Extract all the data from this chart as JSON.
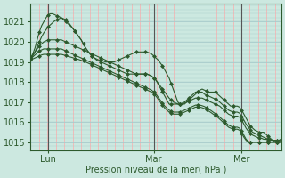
{
  "xlabel": "Pression niveau de la mer( hPa )",
  "bg_color": "#cce8e0",
  "plot_bg_color": "#cce8e0",
  "grid_h_color": "#aacccc",
  "grid_v_color": "#ffaaaa",
  "line_color": "#2d5a2d",
  "tick_color": "#2d5a2d",
  "vline_color": "#555555",
  "ylim": [
    1014.6,
    1021.9
  ],
  "yticks": [
    1015,
    1016,
    1017,
    1018,
    1019,
    1020,
    1021
  ],
  "xlim_max": 114,
  "day_positions": [
    8,
    56,
    96
  ],
  "day_labels": [
    "Lun",
    "Mar",
    "Mer"
  ],
  "total_points": 115,
  "series": [
    [
      1019.2,
      1019.4,
      1019.7,
      1020.1,
      1020.5,
      1020.8,
      1021.0,
      1021.2,
      1021.35,
      1021.4,
      1021.4,
      1021.35,
      1021.3,
      1021.25,
      1021.2,
      1021.1,
      1021.0,
      1020.9,
      1020.8,
      1020.7,
      1020.55,
      1020.4,
      1020.25,
      1020.1,
      1019.9,
      1019.7,
      1019.55,
      1019.4,
      1019.3,
      1019.2,
      1019.15,
      1019.1,
      1019.1,
      1019.05,
      1019.0,
      1019.0,
      1019.0,
      1019.0,
      1019.0,
      1019.05,
      1019.1,
      1019.15,
      1019.2,
      1019.25,
      1019.3,
      1019.35,
      1019.4,
      1019.45,
      1019.5,
      1019.5,
      1019.5,
      1019.5,
      1019.5,
      1019.5,
      1019.45,
      1019.4,
      1019.3,
      1019.2,
      1019.1,
      1018.95,
      1018.8,
      1018.6,
      1018.4,
      1018.2,
      1017.9,
      1017.6,
      1017.3,
      1017.0,
      1016.9,
      1016.9,
      1016.9,
      1017.0,
      1017.1,
      1017.2,
      1017.3,
      1017.4,
      1017.5,
      1017.6,
      1017.65,
      1017.6,
      1017.55,
      1017.5,
      1017.5,
      1017.5,
      1017.5,
      1017.4,
      1017.3,
      1017.2,
      1017.1,
      1017.0,
      1016.9,
      1016.8,
      1016.8,
      1016.8,
      1016.8,
      1016.75,
      1016.6,
      1016.4,
      1016.2,
      1016.0,
      1015.8,
      1015.7,
      1015.6,
      1015.55,
      1015.5,
      1015.5,
      1015.5,
      1015.4,
      1015.3,
      1015.2,
      1015.1,
      1015.05,
      1015.0,
      1015.0,
      1015.1
    ],
    [
      1019.15,
      1019.3,
      1019.5,
      1019.75,
      1020.0,
      1020.25,
      1020.45,
      1020.6,
      1020.75,
      1020.85,
      1020.95,
      1021.05,
      1021.1,
      1021.15,
      1021.2,
      1021.15,
      1021.1,
      1021.0,
      1020.85,
      1020.7,
      1020.55,
      1020.4,
      1020.25,
      1020.1,
      1019.9,
      1019.7,
      1019.55,
      1019.4,
      1019.3,
      1019.2,
      1019.1,
      1019.05,
      1019.0,
      1018.95,
      1018.9,
      1018.85,
      1018.8,
      1018.75,
      1018.7,
      1018.65,
      1018.6,
      1018.55,
      1018.5,
      1018.45,
      1018.4,
      1018.4,
      1018.4,
      1018.4,
      1018.4,
      1018.4,
      1018.4,
      1018.4,
      1018.4,
      1018.4,
      1018.35,
      1018.3,
      1018.2,
      1018.1,
      1017.9,
      1017.7,
      1017.5,
      1017.3,
      1017.1,
      1016.9,
      1016.9,
      1016.9,
      1016.9,
      1016.9,
      1016.9,
      1016.95,
      1017.0,
      1017.1,
      1017.2,
      1017.3,
      1017.4,
      1017.5,
      1017.5,
      1017.5,
      1017.5,
      1017.4,
      1017.35,
      1017.3,
      1017.25,
      1017.2,
      1017.15,
      1017.1,
      1017.0,
      1016.9,
      1016.8,
      1016.7,
      1016.6,
      1016.55,
      1016.5,
      1016.5,
      1016.5,
      1016.45,
      1016.3,
      1016.1,
      1015.9,
      1015.75,
      1015.6,
      1015.5,
      1015.45,
      1015.4,
      1015.35,
      1015.3,
      1015.25,
      1015.2,
      1015.15,
      1015.15,
      1015.1,
      1015.1,
      1015.1,
      1015.1,
      1015.15
    ],
    [
      1019.2,
      1019.35,
      1019.5,
      1019.65,
      1019.8,
      1019.9,
      1020.0,
      1020.05,
      1020.1,
      1020.1,
      1020.1,
      1020.1,
      1020.1,
      1020.1,
      1020.1,
      1020.05,
      1020.0,
      1019.95,
      1019.9,
      1019.85,
      1019.8,
      1019.75,
      1019.7,
      1019.65,
      1019.6,
      1019.55,
      1019.5,
      1019.45,
      1019.4,
      1019.35,
      1019.3,
      1019.25,
      1019.2,
      1019.15,
      1019.1,
      1019.05,
      1019.0,
      1018.95,
      1018.9,
      1018.85,
      1018.8,
      1018.75,
      1018.7,
      1018.65,
      1018.6,
      1018.55,
      1018.5,
      1018.45,
      1018.4,
      1018.4,
      1018.4,
      1018.4,
      1018.4,
      1018.4,
      1018.35,
      1018.3,
      1018.2,
      1018.1,
      1017.95,
      1017.8,
      1017.65,
      1017.5,
      1017.35,
      1017.2,
      1017.1,
      1017.0,
      1016.95,
      1016.9,
      1016.88,
      1016.9,
      1016.95,
      1017.0,
      1017.05,
      1017.1,
      1017.15,
      1017.2,
      1017.2,
      1017.2,
      1017.2,
      1017.15,
      1017.1,
      1017.05,
      1017.0,
      1016.95,
      1016.9,
      1016.85,
      1016.8,
      1016.7,
      1016.6,
      1016.5,
      1016.4,
      1016.35,
      1016.3,
      1016.3,
      1016.3,
      1016.25,
      1016.1,
      1015.9,
      1015.7,
      1015.55,
      1015.45,
      1015.35,
      1015.3,
      1015.25,
      1015.2,
      1015.2,
      1015.15,
      1015.15,
      1015.1,
      1015.1,
      1015.1,
      1015.1,
      1015.1,
      1015.1,
      1015.15
    ],
    [
      1019.15,
      1019.25,
      1019.35,
      1019.45,
      1019.55,
      1019.6,
      1019.65,
      1019.65,
      1019.65,
      1019.65,
      1019.65,
      1019.65,
      1019.65,
      1019.65,
      1019.65,
      1019.6,
      1019.55,
      1019.5,
      1019.45,
      1019.4,
      1019.35,
      1019.3,
      1019.25,
      1019.2,
      1019.15,
      1019.1,
      1019.05,
      1019.0,
      1018.95,
      1018.9,
      1018.85,
      1018.8,
      1018.75,
      1018.7,
      1018.65,
      1018.6,
      1018.55,
      1018.5,
      1018.45,
      1018.4,
      1018.35,
      1018.3,
      1018.25,
      1018.2,
      1018.15,
      1018.1,
      1018.05,
      1018.0,
      1017.95,
      1017.9,
      1017.85,
      1017.8,
      1017.75,
      1017.7,
      1017.65,
      1017.6,
      1017.5,
      1017.4,
      1017.25,
      1017.1,
      1016.95,
      1016.8,
      1016.7,
      1016.6,
      1016.55,
      1016.5,
      1016.5,
      1016.5,
      1016.52,
      1016.55,
      1016.6,
      1016.65,
      1016.7,
      1016.75,
      1016.8,
      1016.85,
      1016.85,
      1016.85,
      1016.82,
      1016.78,
      1016.72,
      1016.65,
      1016.58,
      1016.5,
      1016.42,
      1016.35,
      1016.25,
      1016.15,
      1016.05,
      1015.95,
      1015.85,
      1015.8,
      1015.75,
      1015.75,
      1015.75,
      1015.7,
      1015.55,
      1015.35,
      1015.15,
      1015.05,
      1015.0,
      1015.0,
      1015.0,
      1015.0,
      1015.0,
      1015.0,
      1015.0,
      1015.0,
      1015.0,
      1015.0,
      1015.0,
      1015.0,
      1015.0,
      1015.0,
      1015.0
    ],
    [
      1019.1,
      1019.15,
      1019.2,
      1019.25,
      1019.3,
      1019.35,
      1019.38,
      1019.38,
      1019.38,
      1019.38,
      1019.38,
      1019.38,
      1019.38,
      1019.38,
      1019.38,
      1019.35,
      1019.32,
      1019.28,
      1019.25,
      1019.22,
      1019.18,
      1019.15,
      1019.12,
      1019.08,
      1019.05,
      1019.0,
      1018.95,
      1018.9,
      1018.85,
      1018.8,
      1018.75,
      1018.7,
      1018.65,
      1018.6,
      1018.55,
      1018.5,
      1018.45,
      1018.4,
      1018.35,
      1018.3,
      1018.25,
      1018.2,
      1018.15,
      1018.1,
      1018.05,
      1018.0,
      1017.95,
      1017.9,
      1017.85,
      1017.8,
      1017.75,
      1017.7,
      1017.65,
      1017.6,
      1017.55,
      1017.5,
      1017.4,
      1017.3,
      1017.15,
      1017.0,
      1016.85,
      1016.7,
      1016.6,
      1016.5,
      1016.45,
      1016.4,
      1016.4,
      1016.4,
      1016.42,
      1016.45,
      1016.5,
      1016.55,
      1016.6,
      1016.65,
      1016.7,
      1016.75,
      1016.75,
      1016.75,
      1016.72,
      1016.68,
      1016.62,
      1016.55,
      1016.48,
      1016.4,
      1016.32,
      1016.25,
      1016.15,
      1016.05,
      1015.95,
      1015.85,
      1015.75,
      1015.7,
      1015.65,
      1015.65,
      1015.65,
      1015.6,
      1015.45,
      1015.25,
      1015.1,
      1015.0,
      1015.0,
      1015.0,
      1015.0,
      1015.0,
      1015.0,
      1015.0,
      1015.0,
      1015.0,
      1015.0,
      1015.0,
      1015.0,
      1015.0,
      1015.0,
      1015.0,
      1015.0
    ]
  ]
}
